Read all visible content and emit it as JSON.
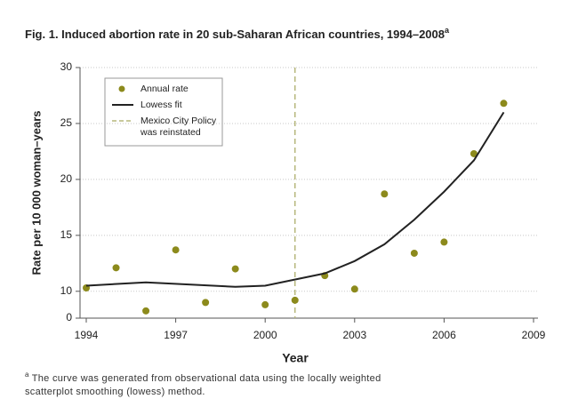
{
  "chart_data": {
    "type": "scatter",
    "title": "Fig. 1. Induced abortion rate in 20 sub-Saharan African countries, 1994–2008",
    "title_note": "a",
    "xlabel": "Year",
    "ylabel": "Rate per 10 000 woman–years",
    "xlim": [
      1994,
      2009
    ],
    "xticks": [
      1994,
      1997,
      2000,
      2003,
      2006,
      2009
    ],
    "ylim": [
      7.6,
      30
    ],
    "yticks": [
      10,
      15,
      20,
      25,
      30
    ],
    "y_break_label": 0,
    "grid": true,
    "series": [
      {
        "name": "Annual rate",
        "type": "scatter",
        "color": "#8c8a1c",
        "x": [
          1994,
          1995,
          1996,
          1997,
          1998,
          1999,
          2000,
          2001,
          2002,
          2003,
          2004,
          2005,
          2006,
          2007,
          2008
        ],
        "values": [
          10.3,
          12.1,
          8.25,
          13.7,
          9.0,
          12.0,
          8.8,
          9.2,
          11.4,
          10.2,
          18.7,
          13.4,
          14.4,
          22.3,
          26.8
        ]
      },
      {
        "name": "Lowess fit",
        "type": "line",
        "color": "#222222",
        "x": [
          1994,
          1996,
          1999,
          2000,
          2002,
          2003,
          2004,
          2005,
          2006,
          2007,
          2008
        ],
        "values": [
          10.5,
          10.8,
          10.4,
          10.5,
          11.6,
          12.7,
          14.2,
          16.4,
          18.9,
          21.7,
          26.0
        ]
      }
    ],
    "policy_line": {
      "x": 2001,
      "color": "#b6b77c",
      "name_lines": [
        "Mexico City Policy",
        "was reinstated"
      ]
    },
    "footnote_mark": "a",
    "footnote": [
      "The curve was generated from observational data using the locally weighted",
      "scatterplot smoothing (lowess) method."
    ]
  }
}
